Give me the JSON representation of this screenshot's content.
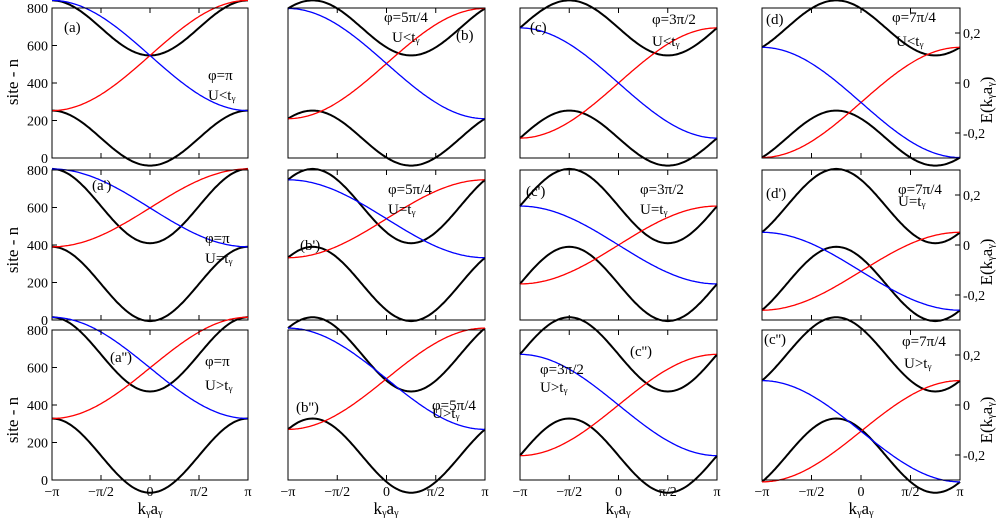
{
  "figure": {
    "y_axis_title_left": "site - n",
    "y_axis_title_right": "E(kᵧaᵧ)",
    "x_axis_title": "kᵧaᵧ",
    "x_tick_labels": [
      "−π",
      "−π/2",
      "0",
      "π/2",
      "π"
    ],
    "left_y_tick_labels": [
      "0",
      "200",
      "400",
      "600",
      "800"
    ],
    "right_y_tick_labels": [
      "0,2",
      "0",
      "-0,2"
    ],
    "colors": {
      "band": "#000000",
      "left_edge_state": "#0000ff",
      "right_edge_state": "#ff0000"
    }
  },
  "chart_data": [
    {
      "type": "line",
      "panel": "(a)",
      "label": "(a)",
      "phi": "φ=π",
      "regime": "U<tᵧ",
      "phi_ratio": 0.5,
      "gap_frac": 0.92,
      "stretch": 1.0,
      "x_range": [
        -3.14159,
        3.14159
      ],
      "ylim_site": [
        0,
        800
      ],
      "ylim_energy": [
        -0.3,
        0.3
      ]
    },
    {
      "type": "line",
      "panel": "(b)",
      "label": "(b)",
      "phi": "φ=5π/4",
      "regime": "U<tᵧ",
      "phi_ratio": 0.625,
      "gap_frac": 0.92,
      "stretch": 1.0,
      "x_range": [
        -3.14159,
        3.14159
      ],
      "ylim_site": [
        0,
        800
      ],
      "ylim_energy": [
        -0.3,
        0.3
      ]
    },
    {
      "type": "line",
      "panel": "(c)",
      "label": "(c)",
      "phi": "φ=3π/2",
      "regime": "U<tᵧ",
      "phi_ratio": 0.75,
      "gap_frac": 0.92,
      "stretch": 1.0,
      "x_range": [
        -3.14159,
        3.14159
      ],
      "ylim_site": [
        0,
        800
      ],
      "ylim_energy": [
        -0.3,
        0.3
      ]
    },
    {
      "type": "line",
      "panel": "(d)",
      "label": "(d)",
      "phi": "φ=7π/4",
      "regime": "U<tᵧ",
      "phi_ratio": 0.875,
      "gap_frac": 0.92,
      "stretch": 1.0,
      "x_range": [
        -3.14159,
        3.14159
      ],
      "ylim_site": [
        0,
        800
      ],
      "ylim_energy": [
        -0.3,
        0.3
      ]
    },
    {
      "type": "line",
      "panel": "(a')",
      "label": "(a')",
      "phi": "φ=π",
      "regime": "U=tᵧ",
      "phi_ratio": 0.5,
      "gap_frac": 0.06,
      "stretch": 1.4,
      "x_range": [
        -3.14159,
        3.14159
      ],
      "ylim_site": [
        0,
        800
      ],
      "ylim_energy": [
        -0.3,
        0.3
      ]
    },
    {
      "type": "line",
      "panel": "(b')",
      "label": "(b')",
      "phi": "φ=5π/4",
      "regime": "U=tᵧ",
      "phi_ratio": 0.625,
      "gap_frac": 0.06,
      "stretch": 1.4,
      "x_range": [
        -3.14159,
        3.14159
      ],
      "ylim_site": [
        0,
        800
      ],
      "ylim_energy": [
        -0.3,
        0.3
      ]
    },
    {
      "type": "line",
      "panel": "(c')",
      "label": "(c')",
      "phi": "φ=3π/2",
      "regime": "U=tᵧ",
      "phi_ratio": 0.75,
      "gap_frac": 0.06,
      "stretch": 1.4,
      "x_range": [
        -3.14159,
        3.14159
      ],
      "ylim_site": [
        0,
        800
      ],
      "ylim_energy": [
        -0.3,
        0.3
      ]
    },
    {
      "type": "line",
      "panel": "(d')",
      "label": "(d')",
      "phi": "φ=7π/4",
      "regime": "U=tᵧ",
      "phi_ratio": 0.875,
      "gap_frac": 0.06,
      "stretch": 1.4,
      "x_range": [
        -3.14159,
        3.14159
      ],
      "ylim_site": [
        0,
        800
      ],
      "ylim_energy": [
        -0.3,
        0.3
      ]
    },
    {
      "type": "line",
      "panel": "(a'')",
      "label": "(a'')",
      "phi": "φ=π",
      "regime": "U>tᵧ",
      "phi_ratio": 0.5,
      "gap_frac": 0.45,
      "stretch": 1.8,
      "x_range": [
        -3.14159,
        3.14159
      ],
      "ylim_site": [
        0,
        800
      ],
      "ylim_energy": [
        -0.3,
        0.3
      ]
    },
    {
      "type": "line",
      "panel": "(b'')",
      "label": "(b'')",
      "phi": "φ=5π/4",
      "regime": "U>tᵧ",
      "phi_ratio": 0.625,
      "gap_frac": 0.45,
      "stretch": 1.8,
      "x_range": [
        -3.14159,
        3.14159
      ],
      "ylim_site": [
        0,
        800
      ],
      "ylim_energy": [
        -0.3,
        0.3
      ]
    },
    {
      "type": "line",
      "panel": "(c'')",
      "label": "(c'')",
      "phi": "φ=3π/2",
      "regime": "U>tᵧ",
      "phi_ratio": 0.75,
      "gap_frac": 0.45,
      "stretch": 1.8,
      "x_range": [
        -3.14159,
        3.14159
      ],
      "ylim_site": [
        0,
        800
      ],
      "ylim_energy": [
        -0.3,
        0.3
      ]
    },
    {
      "type": "line",
      "panel": "(c'')",
      "label": "(c'')",
      "phi": "φ=7π/4",
      "regime": "U>tᵧ",
      "phi_ratio": 0.875,
      "gap_frac": 0.45,
      "stretch": 1.8,
      "x_range": [
        -3.14159,
        3.14159
      ],
      "ylim_site": [
        0,
        800
      ],
      "ylim_energy": [
        -0.3,
        0.3
      ]
    }
  ]
}
